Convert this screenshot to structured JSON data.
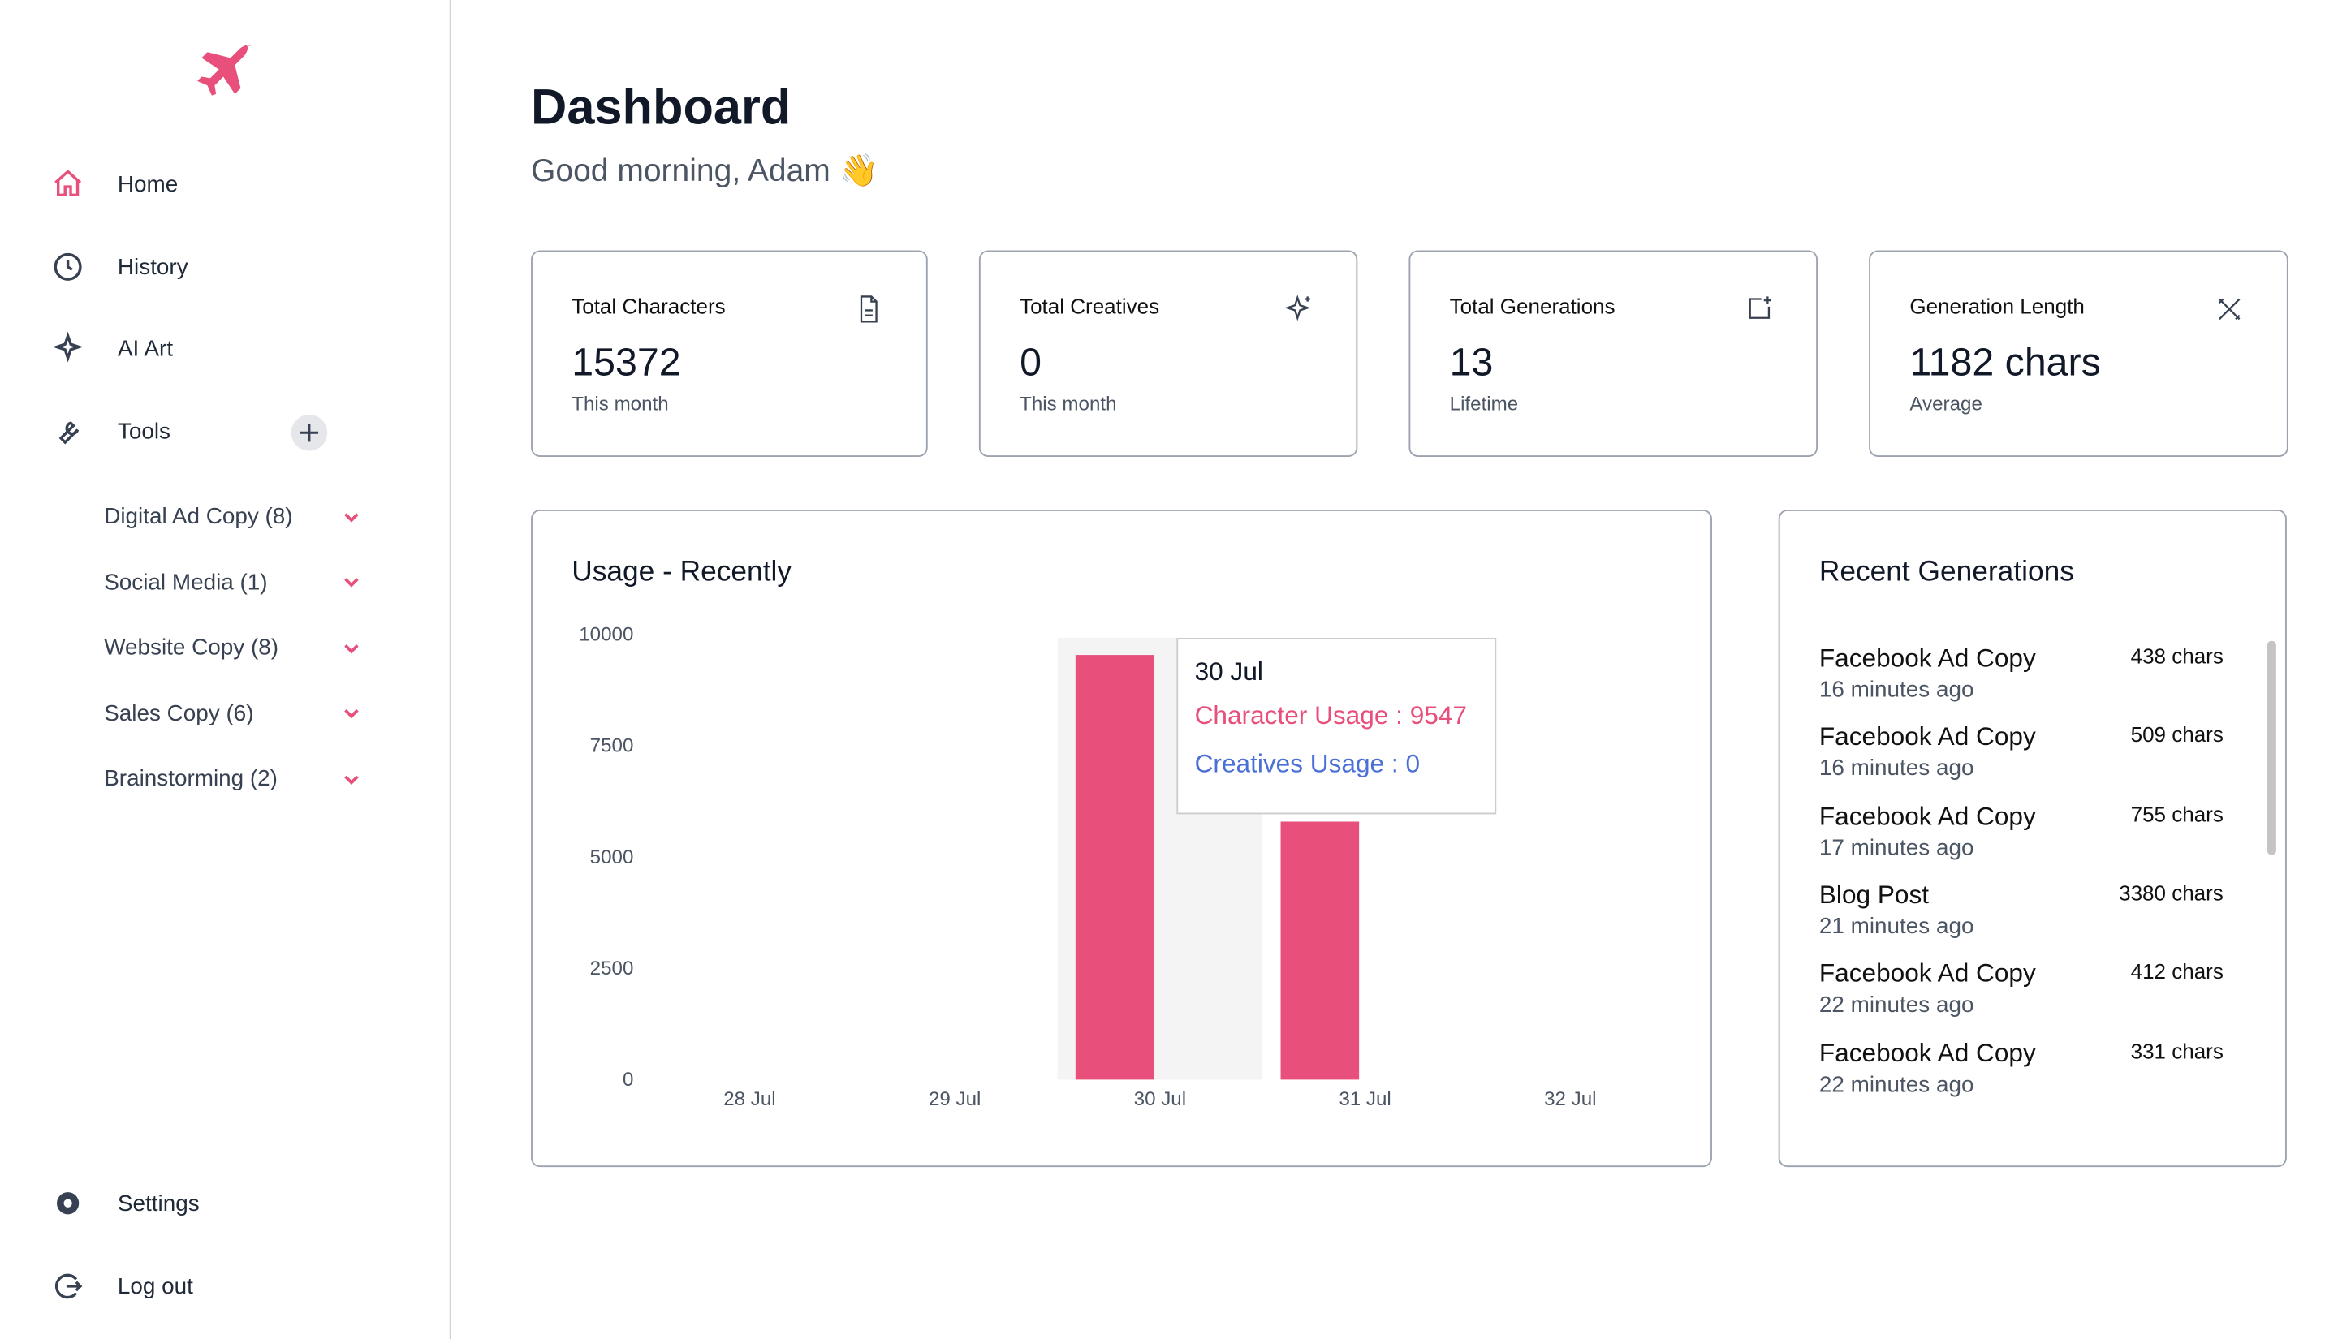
{
  "nav": {
    "home": "Home",
    "history": "History",
    "ai_art": "AI Art",
    "tools": "Tools",
    "settings": "Settings",
    "logout": "Log out"
  },
  "tools": [
    "Digital Ad Copy (8)",
    "Social Media (1)",
    "Website Copy (8)",
    "Sales Copy (6)",
    "Brainstorming (2)"
  ],
  "header": {
    "title": "Dashboard",
    "greeting": "Good morning, Adam 👋"
  },
  "stats": [
    {
      "label": "Total Characters",
      "value": "15372",
      "sub": "This month"
    },
    {
      "label": "Total Creatives",
      "value": "0",
      "sub": "This month"
    },
    {
      "label": "Total Generations",
      "value": "13",
      "sub": "Lifetime"
    },
    {
      "label": "Generation Length",
      "value": "1182 chars",
      "sub": "Average"
    }
  ],
  "chart_data": {
    "type": "bar",
    "title": "Usage - Recently",
    "categories": [
      "28 Jul",
      "29 Jul",
      "30 Jul",
      "31 Jul",
      "32 Jul"
    ],
    "series": [
      {
        "name": "Character Usage",
        "color": "#e84f7b",
        "values": [
          0,
          0,
          9547,
          5800,
          0
        ]
      },
      {
        "name": "Creatives Usage",
        "color": "#4a6fd6",
        "values": [
          0,
          0,
          0,
          0,
          0
        ]
      }
    ],
    "ylim": [
      0,
      10000
    ],
    "yticks": [
      0,
      2500,
      5000,
      7500,
      10000
    ],
    "grid": false,
    "tooltip_category": 2
  },
  "recent": {
    "title": "Recent Generations",
    "items": [
      {
        "title": "Facebook Ad Copy",
        "chars": "438 chars",
        "time": "16 minutes ago"
      },
      {
        "title": "Facebook Ad Copy",
        "chars": "509 chars",
        "time": "16 minutes ago"
      },
      {
        "title": "Facebook Ad Copy",
        "chars": "755 chars",
        "time": "17 minutes ago"
      },
      {
        "title": "Blog Post",
        "chars": "3380 chars",
        "time": "21 minutes ago"
      },
      {
        "title": "Facebook Ad Copy",
        "chars": "412 chars",
        "time": "22 minutes ago"
      },
      {
        "title": "Facebook Ad Copy",
        "chars": "331 chars",
        "time": "22 minutes ago"
      }
    ]
  }
}
